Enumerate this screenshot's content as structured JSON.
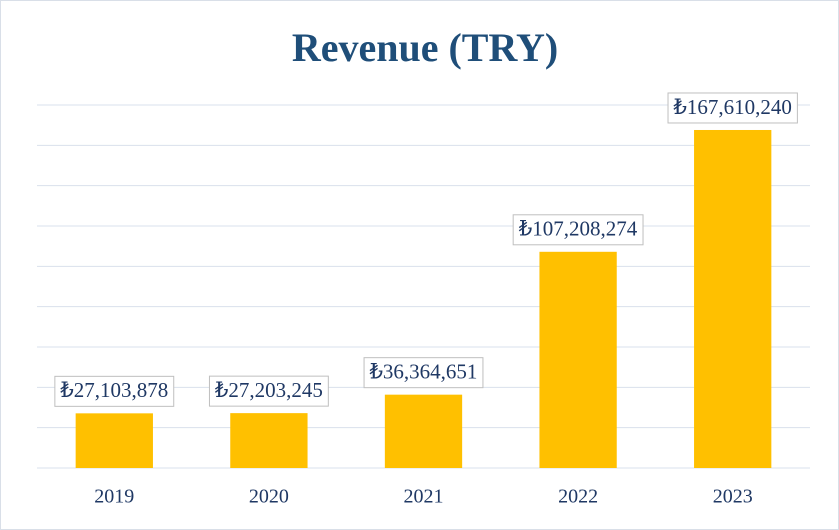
{
  "chart_data": {
    "type": "bar",
    "title": "Revenue (TRY)",
    "categories": [
      "2019",
      "2020",
      "2021",
      "2022",
      "2023"
    ],
    "values": [
      27103878,
      27203245,
      36364651,
      107208274,
      167610240
    ],
    "value_labels": [
      "₺27,103,878",
      "₺27,203,245",
      "₺36,364,651",
      "₺107,208,274",
      "₺167,610,240"
    ],
    "color": "#ffc000",
    "ylim": [
      0,
      180000000
    ],
    "yticks": [
      0,
      20000000,
      40000000,
      60000000,
      80000000,
      100000000,
      120000000,
      140000000,
      160000000,
      180000000
    ],
    "grid": true
  }
}
